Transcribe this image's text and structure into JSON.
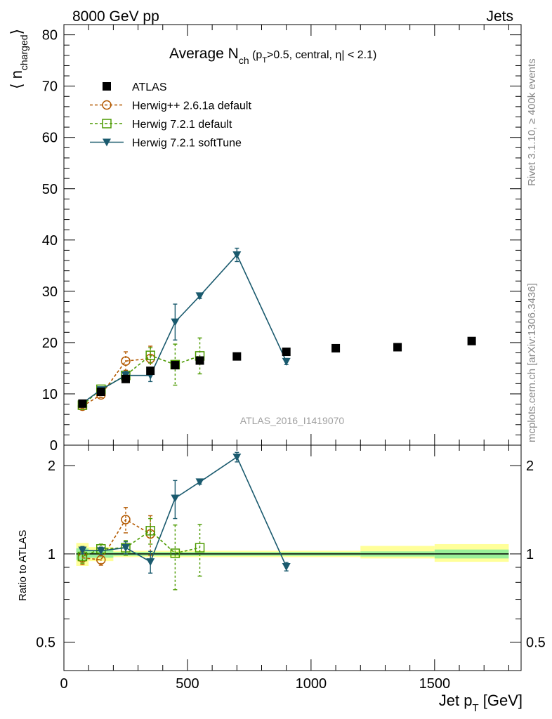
{
  "header": {
    "left": "8000 GeV pp",
    "right": "Jets",
    "side_rivet": "Rivet 3.1.10, ≥ 400k events",
    "side_mcplots": "mcplots.cern.ch [arXiv:1306.3436]",
    "watermark": "ATLAS_2016_I1419070"
  },
  "title": {
    "main": "Average N",
    "sub": "ch",
    "cond_pre": " (p",
    "cond_sub": "T",
    "cond_post": ">0.5, central, η| < 2.1)"
  },
  "axes": {
    "ylabel_open": "⟨ n",
    "ylabel_sub": "charged",
    "ylabel_close": "⟩",
    "xlabel_main": "Jet p",
    "xlabel_sub": "T",
    "xlabel_unit": " [GeV]",
    "ratio_ylabel": "Ratio to ATLAS"
  },
  "chart_data": {
    "type": "scatter",
    "title": "Average N_ch (p_T>0.5, central, η| < 2.1)",
    "xlabel": "Jet p_T [GeV]",
    "ylabel": "⟨ n_charged ⟩",
    "xlim": [
      0,
      1850
    ],
    "ylim": [
      0,
      82
    ],
    "x_ticks": [
      0,
      500,
      1000,
      1500
    ],
    "y_ticks": [
      10,
      20,
      30,
      40,
      50,
      60,
      70,
      80
    ],
    "y_tick_labels": [
      "10",
      "20",
      "30",
      "40",
      "50",
      "60",
      "70",
      "80"
    ],
    "ratio": {
      "ylabel": "Ratio to ATLAS",
      "ylim": [
        0.4,
        2.35
      ],
      "log_scale": true,
      "y_ticks": [
        0.5,
        1,
        2
      ],
      "y_tick_labels": [
        "0.5",
        "1",
        "2"
      ],
      "band_inner": [
        {
          "x": [
            50,
            100
          ],
          "lo": 0.955,
          "hi": 1.045
        },
        {
          "x": [
            100,
            200
          ],
          "lo": 0.97,
          "hi": 1.03
        },
        {
          "x": [
            200,
            1200
          ],
          "lo": 0.985,
          "hi": 1.015
        },
        {
          "x": [
            1200,
            1500
          ],
          "lo": 0.98,
          "hi": 1.02
        },
        {
          "x": [
            1500,
            1800
          ],
          "lo": 0.965,
          "hi": 1.035
        }
      ],
      "band_outer": [
        {
          "x": [
            50,
            100
          ],
          "lo": 0.91,
          "hi": 1.09
        },
        {
          "x": [
            100,
            200
          ],
          "lo": 0.945,
          "hi": 1.055
        },
        {
          "x": [
            200,
            1200
          ],
          "lo": 0.975,
          "hi": 1.025
        },
        {
          "x": [
            1200,
            1500
          ],
          "lo": 0.965,
          "hi": 1.065
        },
        {
          "x": [
            1500,
            1800
          ],
          "lo": 0.94,
          "hi": 1.08
        }
      ]
    },
    "series": [
      {
        "name": "ATLAS",
        "marker": "square-filled",
        "color": "#000000",
        "line": "none",
        "x": [
          75,
          150,
          250,
          350,
          450,
          550,
          700,
          900,
          1100,
          1350,
          1650
        ],
        "y": [
          8.1,
          10.4,
          12.9,
          14.5,
          15.6,
          16.5,
          17.3,
          18.2,
          18.9,
          19.1,
          20.3
        ],
        "err": [
          0.3,
          0.3,
          0.3,
          0.3,
          0.3,
          0.3,
          0.3,
          0.3,
          0.3,
          0.3,
          0.5
        ],
        "ratio": null
      },
      {
        "name": "Herwig++ 2.6.1a default",
        "marker": "circle-open",
        "color": "#b35900",
        "line": "dashed",
        "x": [
          75,
          150,
          250,
          350
        ],
        "y": [
          7.6,
          9.8,
          16.4,
          16.9
        ],
        "err": [
          0.4,
          0.5,
          1.8,
          2.4
        ],
        "ratio": [
          0.97,
          0.955,
          1.31,
          1.17
        ],
        "ratio_err": [
          0.05,
          0.04,
          0.13,
          0.18
        ]
      },
      {
        "name": "Herwig 7.2.1 default",
        "marker": "square-open",
        "color": "#4c9a00",
        "line": "dashed",
        "x": [
          75,
          150,
          250,
          350,
          450,
          550
        ],
        "y": [
          7.8,
          10.9,
          13.6,
          17.5,
          15.7,
          17.4
        ],
        "err": [
          0.4,
          0.4,
          0.8,
          1.5,
          4.0,
          3.5
        ],
        "ratio": [
          0.98,
          1.04,
          1.05,
          1.2,
          1.005,
          1.05
        ],
        "ratio_err": [
          0.05,
          0.04,
          0.06,
          0.12,
          0.25,
          0.21
        ]
      },
      {
        "name": "Herwig 7.2.1 softTune",
        "marker": "triangle-down-filled",
        "color": "#1a5a6e",
        "line": "solid",
        "x": [
          75,
          150,
          250,
          350,
          450,
          550,
          700,
          900
        ],
        "y": [
          8.2,
          10.8,
          13.6,
          13.6,
          24.0,
          29.1,
          37.1,
          16.3
        ],
        "err": [
          0.4,
          0.4,
          0.8,
          1.2,
          3.5,
          0.5,
          1.3,
          0.6
        ],
        "ratio": [
          1.03,
          1.025,
          1.05,
          0.94,
          1.55,
          1.76,
          2.14,
          0.905
        ],
        "ratio_err": [
          0.03,
          0.03,
          0.05,
          0.08,
          0.23,
          0.03,
          0.08,
          0.03
        ]
      }
    ]
  }
}
